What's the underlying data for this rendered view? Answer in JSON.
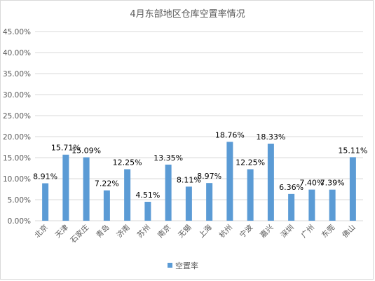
{
  "chart_data": {
    "type": "bar",
    "title": "4月东部地区仓库空置率情况",
    "categories": [
      "北京",
      "天津",
      "石家庄",
      "青岛",
      "济南",
      "苏州",
      "南京",
      "无锡",
      "上海",
      "杭州",
      "宁波",
      "嘉兴",
      "深圳",
      "广州",
      "东莞",
      "佛山"
    ],
    "series": [
      {
        "name": "空置率",
        "values": [
          8.91,
          15.71,
          15.09,
          7.22,
          12.25,
          4.51,
          13.35,
          8.11,
          8.97,
          18.76,
          12.25,
          18.33,
          6.36,
          7.4,
          7.39,
          15.11
        ],
        "labels": [
          "8.91%",
          "15.71%",
          "15.09%",
          "7.22%",
          "12.25%",
          "4.51%",
          "13.35%",
          "8.11%",
          "8.97%",
          "18.76%",
          "12.25%",
          "18.33%",
          "6.36%",
          "7.40%",
          "7.39%",
          "15.11%"
        ]
      }
    ],
    "ylim": [
      0,
      45
    ],
    "yticks": [
      "0.00%",
      "5.00%",
      "10.00%",
      "15.00%",
      "20.00%",
      "25.00%",
      "30.00%",
      "35.00%",
      "40.00%",
      "45.00%"
    ],
    "grid": true,
    "legend_position": "bottom",
    "colors": {
      "bar": "#5b9bd5",
      "grid": "#d9d9d9",
      "text": "#595959",
      "label": "#000000"
    }
  }
}
